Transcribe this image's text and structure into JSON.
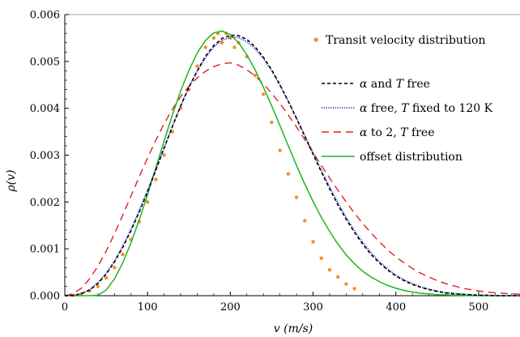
{
  "chart_data": {
    "type": "line",
    "xlabel": "v (m/s)",
    "ylabel": "ρ(v)",
    "xlim": [
      0,
      550
    ],
    "ylim": [
      0,
      0.006
    ],
    "x_ticks": [
      0,
      100,
      200,
      300,
      400,
      500
    ],
    "x_tick_labels": [
      "0",
      "100",
      "200",
      "300",
      "400",
      "500"
    ],
    "y_ticks": [
      0,
      0.001,
      0.002,
      0.003,
      0.004,
      0.005,
      0.006
    ],
    "y_tick_labels": [
      "0.000",
      "0.001",
      "0.002",
      "0.003",
      "0.004",
      "0.005",
      "0.006"
    ],
    "grid": false,
    "legend_placement": "top-right",
    "series": [
      {
        "name": "Transit velocity distribution",
        "style": "scatter",
        "color": "#F28E2B",
        "x": [
          10,
          20,
          30,
          40,
          50,
          60,
          70,
          80,
          90,
          100,
          110,
          120,
          130,
          140,
          150,
          160,
          170,
          180,
          185,
          190,
          195,
          200,
          205,
          210,
          220,
          230,
          240,
          250,
          260,
          270,
          280,
          290,
          300,
          310,
          320,
          330,
          340,
          350
        ],
        "y": [
          1e-05,
          4e-05,
          0.0001,
          0.0002,
          0.00038,
          0.0006,
          0.00088,
          0.0012,
          0.00158,
          0.002,
          0.00248,
          0.003,
          0.0035,
          0.004,
          0.0044,
          0.0049,
          0.0053,
          0.0055,
          0.0056,
          0.0054,
          0.0056,
          0.0055,
          0.0053,
          0.0054,
          0.0051,
          0.0047,
          0.0043,
          0.0037,
          0.0031,
          0.0026,
          0.0021,
          0.0016,
          0.00115,
          0.0008,
          0.00055,
          0.0004,
          0.00025,
          0.00015
        ]
      },
      {
        "name": "α and T free",
        "style": "dashed-short",
        "color": "#000000",
        "x": [
          0,
          10,
          20,
          30,
          40,
          50,
          60,
          70,
          80,
          90,
          100,
          110,
          120,
          130,
          140,
          150,
          160,
          170,
          180,
          190,
          200,
          210,
          220,
          230,
          240,
          250,
          260,
          270,
          280,
          290,
          300,
          310,
          320,
          330,
          340,
          350,
          360,
          370,
          380,
          390,
          400,
          410,
          420,
          430,
          440,
          450,
          460,
          470,
          480,
          490,
          500,
          510,
          520,
          530,
          540,
          550
        ],
        "y": [
          0,
          6e-06,
          4e-05,
          0.00012,
          0.00026,
          0.00046,
          0.00072,
          0.00103,
          0.00139,
          0.00179,
          0.00222,
          0.00268,
          0.00315,
          0.00361,
          0.00405,
          0.00445,
          0.0048,
          0.00511,
          0.00534,
          0.00549,
          0.00556,
          0.00555,
          0.00547,
          0.00531,
          0.00509,
          0.00482,
          0.0045,
          0.00415,
          0.00378,
          0.0034,
          0.00302,
          0.00264,
          0.00228,
          0.00194,
          0.00163,
          0.00135,
          0.0011,
          0.00088,
          0.0007,
          0.00055,
          0.00042,
          0.00032,
          0.00024,
          0.00018,
          0.00013,
          9e-05,
          6e-05,
          4e-05,
          3e-05,
          2e-05,
          1e-05,
          1e-05,
          0,
          0,
          0,
          0
        ]
      },
      {
        "name": "α free, T fixed to 120 K",
        "style": "dotted",
        "color": "#1F1FD6",
        "x": [
          0,
          10,
          20,
          30,
          40,
          50,
          60,
          70,
          80,
          90,
          100,
          110,
          120,
          130,
          140,
          150,
          160,
          170,
          180,
          190,
          200,
          210,
          220,
          230,
          240,
          250,
          260,
          270,
          280,
          290,
          300,
          310,
          320,
          330,
          340,
          350,
          360,
          370,
          380,
          390,
          400,
          410,
          420,
          430,
          440,
          450,
          460,
          470,
          480,
          490,
          500,
          510,
          520,
          530,
          540,
          550
        ],
        "y": [
          0,
          7e-06,
          4.5e-05,
          0.00013,
          0.00028,
          0.00048,
          0.00074,
          0.00106,
          0.00142,
          0.00182,
          0.00225,
          0.0027,
          0.00316,
          0.00362,
          0.00405,
          0.00445,
          0.00479,
          0.00508,
          0.00531,
          0.00545,
          0.00552,
          0.00551,
          0.00542,
          0.00527,
          0.00506,
          0.0048,
          0.00449,
          0.00415,
          0.00379,
          0.00342,
          0.00305,
          0.00268,
          0.00232,
          0.00198,
          0.00167,
          0.00139,
          0.00114,
          0.00092,
          0.00073,
          0.00057,
          0.00044,
          0.00034,
          0.00026,
          0.00019,
          0.00014,
          0.0001,
          7e-05,
          5e-05,
          3e-05,
          2e-05,
          1e-05,
          1e-05,
          0,
          0,
          0,
          0
        ]
      },
      {
        "name": "α to 2, T free",
        "style": "dashed-long",
        "color": "#E02020",
        "x": [
          0,
          10,
          20,
          30,
          40,
          50,
          60,
          70,
          80,
          90,
          100,
          110,
          120,
          130,
          140,
          150,
          160,
          170,
          180,
          190,
          200,
          210,
          220,
          230,
          240,
          250,
          260,
          270,
          280,
          290,
          300,
          310,
          320,
          330,
          340,
          350,
          360,
          370,
          380,
          390,
          400,
          410,
          420,
          430,
          440,
          450,
          460,
          470,
          480,
          490,
          500,
          510,
          520,
          530,
          540,
          550
        ],
        "y": [
          0,
          4e-05,
          0.00016,
          0.00036,
          0.00063,
          0.00095,
          0.00132,
          0.00172,
          0.00213,
          0.00254,
          0.00294,
          0.00332,
          0.00367,
          0.00398,
          0.00425,
          0.00447,
          0.00465,
          0.00479,
          0.00489,
          0.00495,
          0.00497,
          0.00492,
          0.00482,
          0.00469,
          0.00452,
          0.00432,
          0.0041,
          0.00386,
          0.0036,
          0.00333,
          0.00305,
          0.00278,
          0.00251,
          0.00225,
          0.002,
          0.00176,
          0.00154,
          0.00134,
          0.00115,
          0.00098,
          0.00083,
          0.0007,
          0.00058,
          0.00048,
          0.0004,
          0.00032,
          0.00026,
          0.00021,
          0.00016,
          0.00013,
          0.0001,
          8e-05,
          6e-05,
          5e-05,
          4e-05,
          3e-05
        ]
      },
      {
        "name": "offset distribution",
        "style": "solid",
        "color": "#1FB41F",
        "x": [
          0,
          30,
          40,
          50,
          60,
          70,
          80,
          90,
          100,
          110,
          120,
          130,
          140,
          150,
          160,
          170,
          180,
          190,
          200,
          210,
          220,
          230,
          240,
          250,
          260,
          270,
          280,
          290,
          300,
          310,
          320,
          330,
          340,
          350,
          360,
          370,
          380,
          390,
          400,
          410,
          420,
          430,
          440,
          450,
          460,
          470,
          480,
          490,
          500,
          510,
          520,
          530,
          540,
          550
        ],
        "y": [
          0,
          0,
          1e-05,
          0.00012,
          0.00036,
          0.0007,
          0.00113,
          0.00162,
          0.00216,
          0.00273,
          0.0033,
          0.00386,
          0.00437,
          0.00481,
          0.00518,
          0.00545,
          0.00561,
          0.00565,
          0.00557,
          0.0054,
          0.00514,
          0.00482,
          0.00445,
          0.00405,
          0.00363,
          0.0032,
          0.00278,
          0.00238,
          0.00201,
          0.00167,
          0.00137,
          0.0011,
          0.00087,
          0.00068,
          0.00052,
          0.0004,
          0.0003,
          0.00022,
          0.00016,
          0.00011,
          8e-05,
          5e-05,
          4e-05,
          2e-05,
          2e-05,
          1e-05,
          1e-05,
          0,
          0,
          0,
          0,
          0,
          0,
          0
        ]
      }
    ]
  }
}
